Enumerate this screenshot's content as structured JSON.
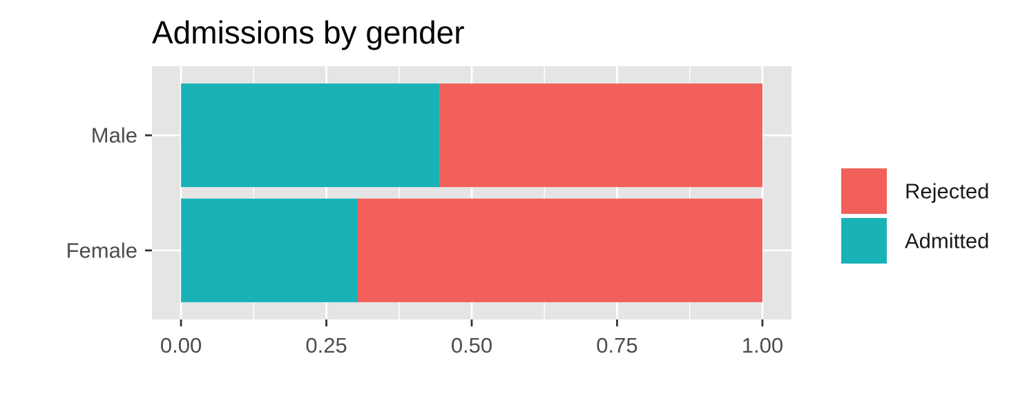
{
  "chart_data": {
    "type": "bar",
    "orientation": "horizontal",
    "stacked": true,
    "title": "Admissions by gender",
    "xlabel": "",
    "ylabel": "",
    "categories": [
      "Male",
      "Female"
    ],
    "series": [
      {
        "name": "Admitted",
        "color": "#19b3b7",
        "values": [
          0.445,
          0.304
        ]
      },
      {
        "name": "Rejected",
        "color": "#f2605b",
        "values": [
          0.555,
          0.696
        ]
      }
    ],
    "xlim": [
      -0.05,
      1.05
    ],
    "x_ticks": [
      0,
      0.25,
      0.5,
      0.75,
      1
    ],
    "x_tick_labels": [
      "0.00",
      "0.25",
      "0.50",
      "0.75",
      "1.00"
    ],
    "legend": {
      "position": "right",
      "entries": [
        {
          "name": "Rejected",
          "color": "#f2605b"
        },
        {
          "name": "Admitted",
          "color": "#19b3b7"
        }
      ]
    },
    "grid": true,
    "panel_background": "#e5e5e5",
    "grid_color": "#ffffff"
  }
}
